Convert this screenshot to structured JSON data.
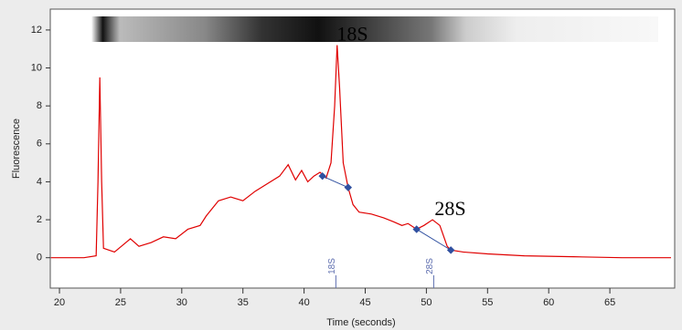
{
  "chart_data": {
    "type": "line",
    "xlabel": "Time (seconds)",
    "ylabel": "Fluorescence",
    "x": [
      19.3,
      22,
      23,
      23.15,
      23.3,
      23.45,
      23.6,
      24.5,
      25.8,
      26.5,
      27.5,
      28.5,
      29.5,
      30.5,
      31.5,
      32,
      33,
      34,
      35,
      36,
      37,
      38,
      38.7,
      39.3,
      39.8,
      40.3,
      40.8,
      41.3,
      41.8,
      42.2,
      42.5,
      42.7,
      42.9,
      43.2,
      43.6,
      44,
      44.5,
      45.5,
      46.5,
      47.3,
      48,
      48.5,
      49.2,
      49.8,
      50.5,
      51.1,
      51.7,
      52,
      53,
      55,
      58,
      62,
      66,
      70
    ],
    "series": [
      {
        "color": "#e00000",
        "values": [
          0,
          0,
          0.1,
          4,
          9.5,
          4,
          0.5,
          0.3,
          1.0,
          0.6,
          0.8,
          1.1,
          1.0,
          1.5,
          1.7,
          2.2,
          3.0,
          3.2,
          3.0,
          3.5,
          3.9,
          4.3,
          4.9,
          4.1,
          4.6,
          4.0,
          4.3,
          4.5,
          4.2,
          5.0,
          8,
          11.2,
          9,
          5,
          3.7,
          2.8,
          2.4,
          2.3,
          2.1,
          1.9,
          1.7,
          1.8,
          1.5,
          1.7,
          2.0,
          1.7,
          0.6,
          0.4,
          0.3,
          0.2,
          0.1,
          0.05,
          0,
          0
        ]
      }
    ],
    "markers": [
      {
        "label": "18S",
        "time": 42.6,
        "x": [
          41.5,
          43.6
        ],
        "y": [
          4.3,
          3.7
        ],
        "color": "#3050a0"
      },
      {
        "label": "28S",
        "time": 50.6,
        "x": [
          49.2,
          52
        ],
        "y": [
          1.5,
          0.4
        ],
        "color": "#3050a0"
      }
    ],
    "xlim": [
      19.25,
      70.3
    ],
    "ylim": [
      -1.6,
      13.1
    ],
    "xticks": [
      20,
      25,
      30,
      35,
      40,
      45,
      50,
      55,
      60,
      65
    ],
    "yticks": [
      0,
      2,
      4,
      6,
      8,
      10,
      12
    ]
  }
}
